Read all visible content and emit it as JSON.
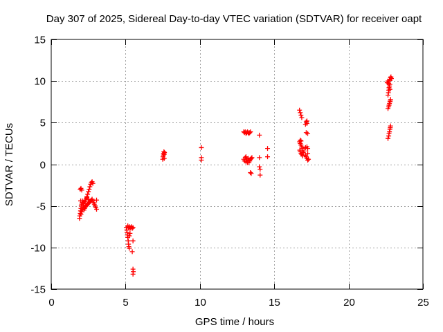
{
  "chart_data": {
    "type": "scatter",
    "title": "Day 307 of 2025, Sidereal Day-to-day VTEC variation (SDTVAR) for receiver oapt",
    "xlabel": "GPS time / hours",
    "ylabel": "SDTVAR / TECUs",
    "xlim": [
      0,
      25
    ],
    "ylim": [
      -15,
      15
    ],
    "xticks": [
      0,
      5,
      10,
      15,
      20,
      25
    ],
    "yticks": [
      -15,
      -10,
      -5,
      0,
      5,
      10,
      15
    ],
    "xtick_labels": [
      "0",
      "5",
      "10",
      "15",
      "20",
      "25"
    ],
    "ytick_labels": [
      "-15",
      "-10",
      "-5",
      "0",
      "5",
      "10",
      "15"
    ],
    "grid": true,
    "marker": "plus",
    "colors": {
      "points": "#ff0000",
      "grid": "#a0a0a0",
      "axis": "#000000"
    },
    "series": [
      {
        "name": "SDTVAR",
        "points": [
          [
            1.9,
            -6.5
          ],
          [
            1.92,
            -6.2
          ],
          [
            1.95,
            -5.9
          ],
          [
            1.97,
            -5.6
          ],
          [
            2.0,
            -5.3
          ],
          [
            2.02,
            -5.0
          ],
          [
            2.05,
            -4.8
          ],
          [
            2.08,
            -4.6
          ],
          [
            1.95,
            -3.0
          ],
          [
            2.0,
            -2.9
          ],
          [
            2.05,
            -3.1
          ],
          [
            2.0,
            -6.0
          ],
          [
            2.05,
            -5.7
          ],
          [
            2.1,
            -5.4
          ],
          [
            2.12,
            -5.2
          ],
          [
            2.15,
            -5.0
          ],
          [
            2.2,
            -4.7
          ],
          [
            2.25,
            -4.5
          ],
          [
            2.3,
            -4.3
          ],
          [
            2.35,
            -4.1
          ],
          [
            2.4,
            -3.9
          ],
          [
            2.45,
            -3.6
          ],
          [
            2.5,
            -3.3
          ],
          [
            2.55,
            -3.0
          ],
          [
            2.6,
            -2.7
          ],
          [
            2.65,
            -2.4
          ],
          [
            2.7,
            -2.2
          ],
          [
            2.75,
            -2.1
          ],
          [
            2.8,
            -2.3
          ],
          [
            2.2,
            -5.5
          ],
          [
            2.25,
            -5.3
          ],
          [
            2.3,
            -5.1
          ],
          [
            2.35,
            -5.0
          ],
          [
            2.4,
            -4.9
          ],
          [
            2.45,
            -4.8
          ],
          [
            2.5,
            -4.7
          ],
          [
            2.55,
            -4.6
          ],
          [
            2.6,
            -4.5
          ],
          [
            2.65,
            -4.4
          ],
          [
            2.7,
            -4.3
          ],
          [
            2.75,
            -4.2
          ],
          [
            2.8,
            -4.4
          ],
          [
            2.85,
            -4.6
          ],
          [
            2.9,
            -4.8
          ],
          [
            2.95,
            -5.0
          ],
          [
            3.0,
            -5.2
          ],
          [
            3.05,
            -4.3
          ],
          [
            3.05,
            -5.4
          ],
          [
            2.1,
            -4.4
          ],
          [
            2.15,
            -4.6
          ],
          [
            1.98,
            -4.4
          ],
          [
            2.4,
            -4.0
          ],
          [
            2.5,
            -4.2
          ],
          [
            5.05,
            -7.6
          ],
          [
            5.08,
            -7.9
          ],
          [
            5.1,
            -8.2
          ],
          [
            5.12,
            -8.5
          ],
          [
            5.15,
            -8.8
          ],
          [
            5.18,
            -9.2
          ],
          [
            5.2,
            -9.6
          ],
          [
            5.22,
            -9.9
          ],
          [
            5.25,
            -10.1
          ],
          [
            5.15,
            -7.4
          ],
          [
            5.2,
            -7.6
          ],
          [
            5.25,
            -7.5
          ],
          [
            5.3,
            -7.7
          ],
          [
            5.35,
            -7.6
          ],
          [
            5.4,
            -7.5
          ],
          [
            5.45,
            -7.7
          ],
          [
            5.5,
            -7.6
          ],
          [
            5.3,
            -8.3
          ],
          [
            5.25,
            -8.6
          ],
          [
            5.5,
            -9.2
          ],
          [
            5.45,
            -10.5
          ],
          [
            5.5,
            -12.6
          ],
          [
            5.52,
            -12.9
          ],
          [
            5.5,
            -13.2
          ],
          [
            7.5,
            0.6
          ],
          [
            7.52,
            0.9
          ],
          [
            7.55,
            1.1
          ],
          [
            7.55,
            1.3
          ],
          [
            7.58,
            1.5
          ],
          [
            7.6,
            1.2
          ],
          [
            7.6,
            0.7
          ],
          [
            7.62,
            1.4
          ],
          [
            10.1,
            2.0
          ],
          [
            10.1,
            0.8
          ],
          [
            10.1,
            0.5
          ],
          [
            12.95,
            3.9
          ],
          [
            13.0,
            3.8
          ],
          [
            13.05,
            3.9
          ],
          [
            13.1,
            3.7
          ],
          [
            13.15,
            3.8
          ],
          [
            13.2,
            3.9
          ],
          [
            13.25,
            3.8
          ],
          [
            13.3,
            3.7
          ],
          [
            13.35,
            3.8
          ],
          [
            13.4,
            3.9
          ],
          [
            12.95,
            0.6
          ],
          [
            13.0,
            0.4
          ],
          [
            13.05,
            0.8
          ],
          [
            13.1,
            0.3
          ],
          [
            13.15,
            0.6
          ],
          [
            13.2,
            0.2
          ],
          [
            13.25,
            0.7
          ],
          [
            13.3,
            0.5
          ],
          [
            13.35,
            0.4
          ],
          [
            13.4,
            0.6
          ],
          [
            13.45,
            0.7
          ],
          [
            13.5,
            0.8
          ],
          [
            13.1,
            0.9
          ],
          [
            13.3,
            0.2
          ],
          [
            13.4,
            -1.0
          ],
          [
            13.45,
            -1.1
          ],
          [
            14.0,
            3.5
          ],
          [
            14.0,
            0.8
          ],
          [
            14.0,
            -0.3
          ],
          [
            14.05,
            -0.6
          ],
          [
            14.05,
            -1.3
          ],
          [
            14.55,
            1.9
          ],
          [
            14.55,
            0.9
          ],
          [
            16.7,
            6.5
          ],
          [
            16.75,
            6.2
          ],
          [
            16.8,
            5.9
          ],
          [
            16.85,
            5.6
          ],
          [
            16.7,
            2.7
          ],
          [
            16.75,
            2.5
          ],
          [
            16.8,
            2.3
          ],
          [
            16.85,
            2.1
          ],
          [
            16.9,
            1.9
          ],
          [
            16.72,
            1.7
          ],
          [
            16.75,
            1.5
          ],
          [
            16.8,
            1.3
          ],
          [
            16.85,
            1.2
          ],
          [
            16.9,
            1.0
          ],
          [
            16.95,
            1.4
          ],
          [
            17.0,
            1.6
          ],
          [
            16.75,
            2.9
          ],
          [
            16.8,
            2.8
          ],
          [
            17.1,
            4.8
          ],
          [
            17.15,
            5.1
          ],
          [
            17.2,
            4.9
          ],
          [
            17.2,
            5.2
          ],
          [
            17.15,
            3.8
          ],
          [
            17.25,
            3.7
          ],
          [
            17.1,
            2.0
          ],
          [
            17.2,
            2.1
          ],
          [
            17.25,
            1.9
          ],
          [
            17.1,
            1.1
          ],
          [
            17.15,
            0.9
          ],
          [
            17.2,
            0.7
          ],
          [
            17.25,
            0.5
          ],
          [
            17.3,
            0.6
          ],
          [
            17.25,
            1.3
          ],
          [
            22.65,
            3.1
          ],
          [
            22.7,
            3.4
          ],
          [
            22.72,
            3.7
          ],
          [
            22.75,
            3.9
          ],
          [
            22.78,
            4.2
          ],
          [
            22.8,
            4.4
          ],
          [
            22.82,
            4.6
          ],
          [
            22.65,
            6.7
          ],
          [
            22.7,
            6.9
          ],
          [
            22.72,
            7.1
          ],
          [
            22.75,
            7.3
          ],
          [
            22.78,
            7.5
          ],
          [
            22.8,
            7.6
          ],
          [
            22.82,
            7.8
          ],
          [
            22.65,
            8.3
          ],
          [
            22.68,
            8.6
          ],
          [
            22.7,
            8.9
          ],
          [
            22.72,
            9.2
          ],
          [
            22.75,
            9.4
          ],
          [
            22.78,
            9.6
          ],
          [
            22.6,
            9.8
          ],
          [
            22.65,
            10.0
          ],
          [
            22.7,
            9.7
          ],
          [
            22.75,
            10.2
          ],
          [
            22.8,
            10.1
          ],
          [
            22.82,
            10.4
          ],
          [
            22.85,
            10.5
          ],
          [
            22.88,
            10.3
          ],
          [
            22.78,
            9.0
          ]
        ]
      }
    ]
  }
}
